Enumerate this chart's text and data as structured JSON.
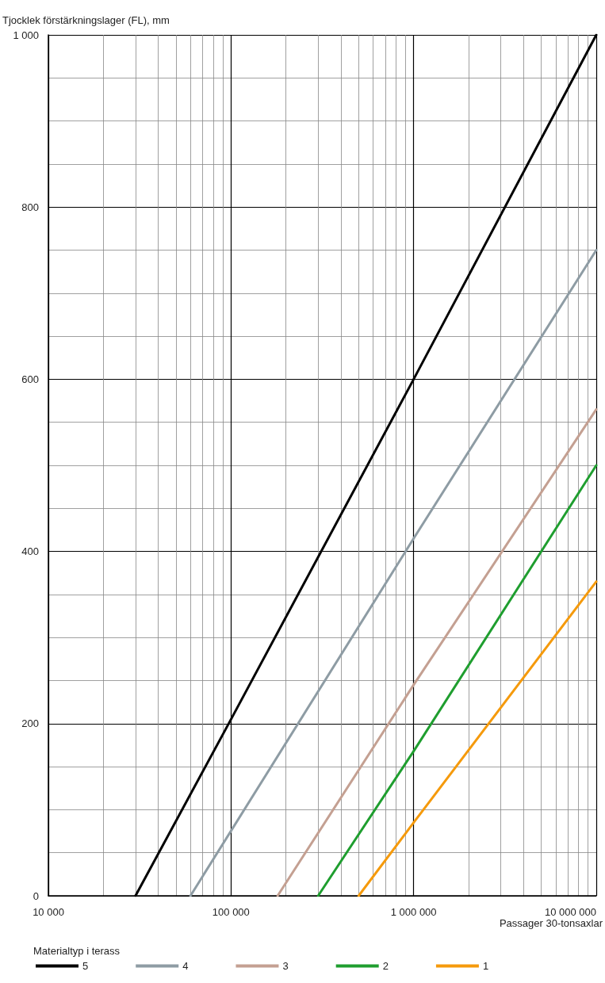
{
  "chart_data": {
    "type": "line",
    "xlabel": "Passager 30-tonsaxlar",
    "ylabel": "Tjocklek förstärkningslager (FL), mm",
    "legend_title": "Materialtyp i terass",
    "log": "x",
    "xlim": [
      10000,
      10000000
    ],
    "ylim": [
      0,
      1000
    ],
    "xticks": [
      {
        "value": 10000,
        "label": "10 000"
      },
      {
        "value": 20000,
        "label": null
      },
      {
        "value": 30000,
        "label": null
      },
      {
        "value": 40000,
        "label": null
      },
      {
        "value": 50000,
        "label": null
      },
      {
        "value": 60000,
        "label": null
      },
      {
        "value": 70000,
        "label": null
      },
      {
        "value": 80000,
        "label": null
      },
      {
        "value": 90000,
        "label": null
      },
      {
        "value": 100000,
        "label": "100 000"
      },
      {
        "value": 200000,
        "label": null
      },
      {
        "value": 300000,
        "label": null
      },
      {
        "value": 400000,
        "label": null
      },
      {
        "value": 500000,
        "label": null
      },
      {
        "value": 600000,
        "label": null
      },
      {
        "value": 700000,
        "label": null
      },
      {
        "value": 800000,
        "label": null
      },
      {
        "value": 900000,
        "label": null
      },
      {
        "value": 1000000,
        "label": "1 000 000"
      },
      {
        "value": 2000000,
        "label": null
      },
      {
        "value": 3000000,
        "label": null
      },
      {
        "value": 4000000,
        "label": null
      },
      {
        "value": 5000000,
        "label": null
      },
      {
        "value": 6000000,
        "label": null
      },
      {
        "value": 7000000,
        "label": null
      },
      {
        "value": 8000000,
        "label": null
      },
      {
        "value": 9000000,
        "label": null
      },
      {
        "value": 10000000,
        "label": "10 000 000"
      }
    ],
    "yticks": [
      0,
      {
        "value": 50,
        "label": null
      },
      {
        "value": 100,
        "label": null
      },
      {
        "value": 150,
        "label": null
      },
      200,
      {
        "value": 250,
        "label": null
      },
      {
        "value": 300,
        "label": null
      },
      {
        "value": 350,
        "label": null
      },
      400,
      {
        "value": 450,
        "label": null
      },
      {
        "value": 500,
        "label": null
      },
      {
        "value": 550,
        "label": null
      },
      600,
      {
        "value": 650,
        "label": null
      },
      {
        "value": 700,
        "label": null
      },
      {
        "value": 750,
        "label": null
      },
      800,
      {
        "value": 850,
        "label": null
      },
      {
        "value": 900,
        "label": null
      },
      {
        "value": 950,
        "label": null
      },
      {
        "value": 1000,
        "label": "1 000"
      }
    ],
    "grid": true,
    "legend": "bottom left",
    "marker": "none",
    "line_style": "solid",
    "series": [
      {
        "name": "5",
        "color": "#000000",
        "x": [
          30000,
          100000,
          1000000,
          10000000
        ],
        "values": [
          0,
          205,
          600,
          1000
        ]
      },
      {
        "name": "4",
        "color": "#8e9ca4",
        "x": [
          60000,
          1000000,
          10000000
        ],
        "values": [
          0,
          415,
          750
        ]
      },
      {
        "name": "3",
        "color": "#c4a092",
        "x": [
          180000,
          1000000,
          10000000
        ],
        "values": [
          0,
          245,
          565
        ]
      },
      {
        "name": "2",
        "color": "#1f9e2f",
        "x": [
          300000,
          1000000,
          10000000
        ],
        "values": [
          0,
          168,
          500
        ]
      },
      {
        "name": "1",
        "color": "#f59a0c",
        "x": [
          500000,
          1000000,
          10000000
        ],
        "values": [
          0,
          85,
          365
        ]
      }
    ]
  }
}
